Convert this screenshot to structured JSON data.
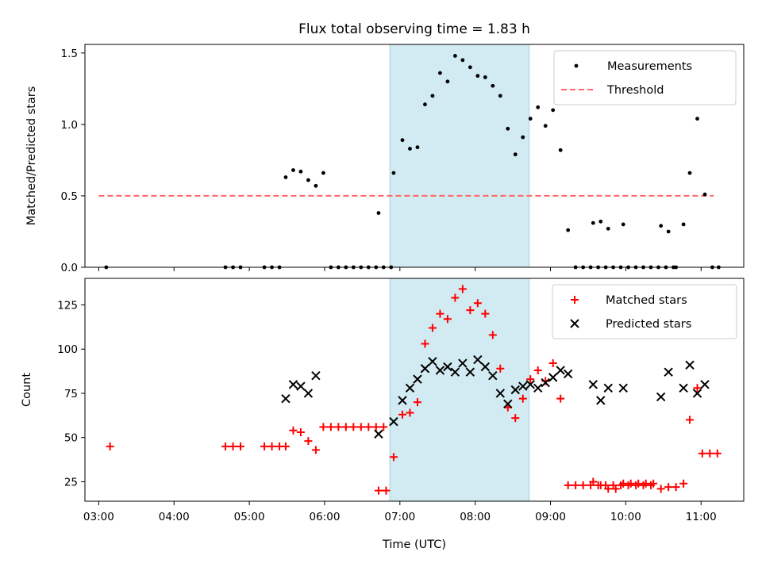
{
  "figure": {
    "title": "Flux total observing time = 1.83 h",
    "xlabel": "Time (UTC)",
    "xticks": [
      {
        "t": 3.0,
        "label": "03:00"
      },
      {
        "t": 4.0,
        "label": "04:00"
      },
      {
        "t": 5.0,
        "label": "05:00"
      },
      {
        "t": 6.0,
        "label": "06:00"
      },
      {
        "t": 7.0,
        "label": "07:00"
      },
      {
        "t": 8.0,
        "label": "08:00"
      },
      {
        "t": 9.0,
        "label": "09:00"
      },
      {
        "t": 10.0,
        "label": "10:00"
      },
      {
        "t": 11.0,
        "label": "11:00"
      }
    ],
    "xlim": [
      "02:49",
      "11:34"
    ],
    "shaded_span": [
      "06:52",
      "08:43"
    ],
    "shade_color": "#add8e6",
    "colors": {
      "measurements": "#000000",
      "threshold": "#ff6666",
      "matched": "#ff0000",
      "predicted": "#000000"
    }
  },
  "chart_data": [
    {
      "type": "scatter",
      "ylabel": "Matched/Predicted stars",
      "ylim": [
        0,
        1.56
      ],
      "yticks": [
        "0.0",
        "0.5",
        "1.0",
        "1.5"
      ],
      "ytick_values": [
        0,
        0.5,
        1.0,
        1.5
      ],
      "legend": {
        "position": "upper right",
        "entries": [
          "Measurements",
          "Threshold"
        ]
      },
      "threshold": {
        "name": "Threshold",
        "y": 0.5,
        "x_range": [
          "03:00",
          "11:10"
        ]
      },
      "series": [
        {
          "name": "Measurements",
          "marker": "dot",
          "points": [
            [
              "03:06",
              0.0
            ],
            [
              "04:41",
              0.0
            ],
            [
              "04:47",
              0.0
            ],
            [
              "04:53",
              0.0
            ],
            [
              "05:12",
              0.0
            ],
            [
              "05:18",
              0.0
            ],
            [
              "05:24",
              0.0
            ],
            [
              "05:29",
              0.63
            ],
            [
              "05:35",
              0.68
            ],
            [
              "05:41",
              0.67
            ],
            [
              "05:47",
              0.61
            ],
            [
              "05:53",
              0.57
            ],
            [
              "05:59",
              0.66
            ],
            [
              "06:05",
              0.0
            ],
            [
              "06:11",
              0.0
            ],
            [
              "06:17",
              0.0
            ],
            [
              "06:23",
              0.0
            ],
            [
              "06:29",
              0.0
            ],
            [
              "06:35",
              0.0
            ],
            [
              "06:41",
              0.0
            ],
            [
              "06:47",
              0.0
            ],
            [
              "06:53",
              0.0
            ],
            [
              "06:43",
              0.38
            ],
            [
              "06:55",
              0.66
            ],
            [
              "07:02",
              0.89
            ],
            [
              "07:08",
              0.83
            ],
            [
              "07:14",
              0.84
            ],
            [
              "07:20",
              1.14
            ],
            [
              "07:26",
              1.2
            ],
            [
              "07:32",
              1.36
            ],
            [
              "07:38",
              1.3
            ],
            [
              "07:44",
              1.48
            ],
            [
              "07:50",
              1.45
            ],
            [
              "07:56",
              1.4
            ],
            [
              "08:02",
              1.34
            ],
            [
              "08:08",
              1.33
            ],
            [
              "08:14",
              1.27
            ],
            [
              "08:20",
              1.2
            ],
            [
              "08:26",
              0.97
            ],
            [
              "08:32",
              0.79
            ],
            [
              "08:38",
              0.91
            ],
            [
              "08:44",
              1.04
            ],
            [
              "08:50",
              1.12
            ],
            [
              "08:56",
              0.99
            ],
            [
              "09:02",
              1.1
            ],
            [
              "09:08",
              0.82
            ],
            [
              "09:14",
              0.26
            ],
            [
              "09:20",
              0.0
            ],
            [
              "09:26",
              0.0
            ],
            [
              "09:32",
              0.0
            ],
            [
              "09:38",
              0.0
            ],
            [
              "09:44",
              0.0
            ],
            [
              "09:50",
              0.0
            ],
            [
              "09:56",
              0.0
            ],
            [
              "10:02",
              0.0
            ],
            [
              "09:34",
              0.31
            ],
            [
              "09:40",
              0.32
            ],
            [
              "09:46",
              0.27
            ],
            [
              "09:58",
              0.3
            ],
            [
              "10:08",
              0.0
            ],
            [
              "10:14",
              0.0
            ],
            [
              "10:20",
              0.0
            ],
            [
              "10:26",
              0.0
            ],
            [
              "10:32",
              0.0
            ],
            [
              "10:38",
              0.0
            ],
            [
              "10:28",
              0.29
            ],
            [
              "10:34",
              0.25
            ],
            [
              "10:40",
              0.0
            ],
            [
              "10:46",
              0.3
            ],
            [
              "10:51",
              0.66
            ],
            [
              "10:57",
              1.04
            ],
            [
              "11:03",
              0.51
            ],
            [
              "11:09",
              0.0
            ],
            [
              "11:14",
              0.0
            ]
          ]
        }
      ]
    },
    {
      "type": "scatter",
      "ylabel": "Count",
      "ylim": [
        14,
        140
      ],
      "yticks": [
        "25",
        "50",
        "75",
        "100",
        "125"
      ],
      "ytick_values": [
        25,
        50,
        75,
        100,
        125
      ],
      "legend": {
        "position": "upper right",
        "entries": [
          "Matched stars",
          "Predicted stars"
        ]
      },
      "series": [
        {
          "name": "Matched stars",
          "marker": "plus",
          "points": [
            [
              "03:09",
              45
            ],
            [
              "04:41",
              45
            ],
            [
              "04:47",
              45
            ],
            [
              "04:53",
              45
            ],
            [
              "05:12",
              45
            ],
            [
              "05:18",
              45
            ],
            [
              "05:24",
              45
            ],
            [
              "05:29",
              45
            ],
            [
              "05:35",
              54
            ],
            [
              "05:41",
              53
            ],
            [
              "05:47",
              48
            ],
            [
              "05:53",
              43
            ],
            [
              "05:59",
              56
            ],
            [
              "06:05",
              56
            ],
            [
              "06:11",
              56
            ],
            [
              "06:17",
              56
            ],
            [
              "06:23",
              56
            ],
            [
              "06:29",
              56
            ],
            [
              "06:35",
              56
            ],
            [
              "06:41",
              56
            ],
            [
              "06:47",
              56
            ],
            [
              "06:43",
              20
            ],
            [
              "06:49",
              20
            ],
            [
              "06:55",
              39
            ],
            [
              "07:02",
              63
            ],
            [
              "07:08",
              64
            ],
            [
              "07:14",
              70
            ],
            [
              "07:20",
              103
            ],
            [
              "07:26",
              112
            ],
            [
              "07:32",
              120
            ],
            [
              "07:38",
              117
            ],
            [
              "07:44",
              129
            ],
            [
              "07:50",
              134
            ],
            [
              "07:56",
              122
            ],
            [
              "08:02",
              126
            ],
            [
              "08:08",
              120
            ],
            [
              "08:14",
              108
            ],
            [
              "08:20",
              89
            ],
            [
              "08:26",
              67
            ],
            [
              "08:32",
              61
            ],
            [
              "08:38",
              72
            ],
            [
              "08:44",
              83
            ],
            [
              "08:50",
              88
            ],
            [
              "08:56",
              82
            ],
            [
              "09:02",
              92
            ],
            [
              "09:08",
              72
            ],
            [
              "09:14",
              23
            ],
            [
              "09:20",
              23
            ],
            [
              "09:26",
              23
            ],
            [
              "09:32",
              23
            ],
            [
              "09:38",
              23
            ],
            [
              "09:44",
              23
            ],
            [
              "09:50",
              23
            ],
            [
              "09:56",
              23
            ],
            [
              "10:02",
              23
            ],
            [
              "10:08",
              23
            ],
            [
              "10:14",
              23
            ],
            [
              "10:20",
              23
            ],
            [
              "09:34",
              25
            ],
            [
              "09:40",
              23
            ],
            [
              "09:46",
              21
            ],
            [
              "09:52",
              21
            ],
            [
              "09:58",
              24
            ],
            [
              "10:04",
              24
            ],
            [
              "10:10",
              24
            ],
            [
              "10:16",
              24
            ],
            [
              "10:22",
              24
            ],
            [
              "10:28",
              21
            ],
            [
              "10:34",
              22
            ],
            [
              "10:40",
              22
            ],
            [
              "10:46",
              24
            ],
            [
              "10:51",
              60
            ],
            [
              "10:57",
              78
            ],
            [
              "11:01",
              41
            ],
            [
              "11:07",
              41
            ],
            [
              "11:13",
              41
            ]
          ]
        },
        {
          "name": "Predicted stars",
          "marker": "x",
          "points": [
            [
              "05:29",
              72
            ],
            [
              "05:35",
              80
            ],
            [
              "05:41",
              79
            ],
            [
              "05:47",
              75
            ],
            [
              "05:53",
              85
            ],
            [
              "06:43",
              52
            ],
            [
              "06:55",
              59
            ],
            [
              "07:02",
              71
            ],
            [
              "07:08",
              78
            ],
            [
              "07:14",
              83
            ],
            [
              "07:20",
              89
            ],
            [
              "07:26",
              93
            ],
            [
              "07:32",
              88
            ],
            [
              "07:38",
              90
            ],
            [
              "07:44",
              87
            ],
            [
              "07:50",
              92
            ],
            [
              "07:56",
              87
            ],
            [
              "08:02",
              94
            ],
            [
              "08:08",
              90
            ],
            [
              "08:14",
              85
            ],
            [
              "08:20",
              75
            ],
            [
              "08:26",
              69
            ],
            [
              "08:32",
              77
            ],
            [
              "08:38",
              79
            ],
            [
              "08:44",
              80
            ],
            [
              "08:50",
              78
            ],
            [
              "08:56",
              81
            ],
            [
              "09:02",
              84
            ],
            [
              "09:08",
              88
            ],
            [
              "09:14",
              86
            ],
            [
              "09:34",
              80
            ],
            [
              "09:40",
              71
            ],
            [
              "09:46",
              78
            ],
            [
              "09:58",
              78
            ],
            [
              "10:28",
              73
            ],
            [
              "10:34",
              87
            ],
            [
              "10:46",
              78
            ],
            [
              "10:51",
              91
            ],
            [
              "10:57",
              75
            ],
            [
              "11:03",
              80
            ]
          ]
        }
      ]
    }
  ]
}
